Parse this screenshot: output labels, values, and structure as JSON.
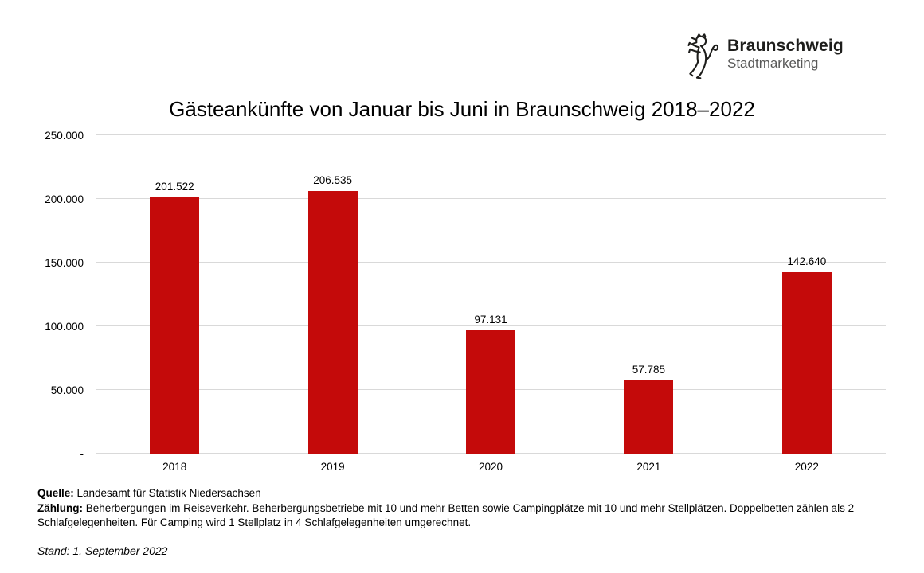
{
  "logo": {
    "brand": "Braunschweig",
    "sub": "Stadtmarketing",
    "icon": "braunschweig-lion"
  },
  "chart_data": {
    "type": "bar",
    "title": "Gästeankünfte von Januar bis Juni in Braunschweig 2018–2022",
    "categories": [
      "2018",
      "2019",
      "2020",
      "2021",
      "2022"
    ],
    "values": [
      201522,
      206535,
      97131,
      57785,
      142640
    ],
    "value_labels": [
      "201.522",
      "206.535",
      "97.131",
      "57.785",
      "142.640"
    ],
    "xlabel": "",
    "ylabel": "",
    "ylim": [
      0,
      250000
    ],
    "y_ticks": [
      {
        "label": "250.000",
        "value": 250000
      },
      {
        "label": "200.000",
        "value": 200000
      },
      {
        "label": "150.000",
        "value": 150000
      },
      {
        "label": "100.000",
        "value": 100000
      },
      {
        "label": "50.000",
        "value": 50000
      },
      {
        "label": "-",
        "value": 0
      }
    ],
    "grid": true,
    "legend_position": "none",
    "bar_color": "#c40a0a",
    "gridline_color": "#d9d9d9"
  },
  "footnotes": {
    "quelle_label": "Quelle:",
    "quelle_text": " Landesamt für Statistik Niedersachsen",
    "zaehlung_label": "Zählung:",
    "zaehlung_text": " Beherbergungen im Reiseverkehr. Beherbergungsbetriebe mit 10 und mehr Betten sowie Campingplätze mit 10 und mehr Stellplätzen. Doppelbetten zählen als 2 Schlafgelegenheiten. Für Camping wird 1 Stellplatz in 4 Schlafgelegenheiten umgerechnet.",
    "stand": "Stand: 1. September 2022"
  }
}
